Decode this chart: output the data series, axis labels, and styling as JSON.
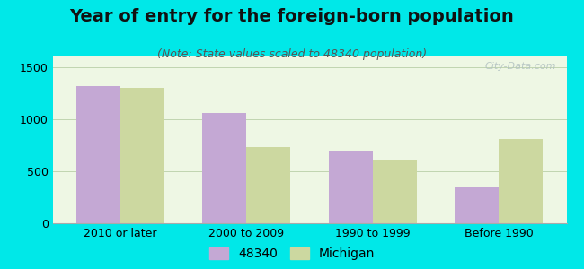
{
  "title": "Year of entry for the foreign-born population",
  "subtitle": "(Note: State values scaled to 48340 population)",
  "categories": [
    "2010 or later",
    "2000 to 2009",
    "1990 to 1999",
    "Before 1990"
  ],
  "values_48340": [
    1320,
    1060,
    700,
    355
  ],
  "values_michigan": [
    1295,
    735,
    615,
    810
  ],
  "color_48340": "#c4a8d4",
  "color_michigan": "#ccd8a0",
  "background_outer": "#00e8e8",
  "background_inner": "#eef7e4",
  "ylim": [
    0,
    1600
  ],
  "yticks": [
    0,
    500,
    1000,
    1500
  ],
  "legend_label_1": "48340",
  "legend_label_2": "Michigan",
  "title_fontsize": 14,
  "subtitle_fontsize": 9,
  "axis_fontsize": 9,
  "legend_fontsize": 10,
  "bar_width": 0.35,
  "watermark": "City-Data.com"
}
